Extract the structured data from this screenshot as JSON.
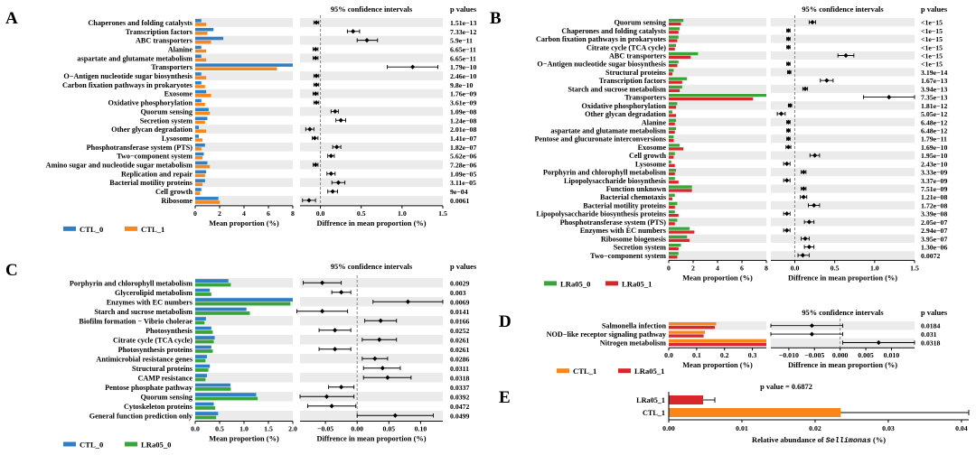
{
  "colors": {
    "blue": "#2e7fc6",
    "orange": "#f7861d",
    "green": "#3aa43a",
    "red": "#d7262c",
    "stripe": "#ebebeb",
    "axis": "#000",
    "dash": "#888"
  },
  "chart_data": [
    {
      "id": "A",
      "type": "bar",
      "letter": "A",
      "series_names": [
        "CTL_0",
        "CTL_1"
      ],
      "colors": [
        "blue",
        "orange"
      ],
      "ci_title": "95% confidence intervals",
      "pvalue_title": "p values",
      "xlabel": "Mean proportion (%)",
      "ci_xlabel": "Diffrence in mean proportion (%)",
      "xlim": [
        0,
        8
      ],
      "xticks": [
        0,
        2,
        4,
        6,
        8
      ],
      "cilim": [
        -0.25,
        1.5
      ],
      "citicks": [
        0.0,
        0.5,
        1.0,
        1.5
      ],
      "rows": [
        {
          "label": "Chaperones and folding catalysts",
          "a": 0.5,
          "b": 0.9,
          "diff": -0.05,
          "lo": -0.08,
          "hi": -0.02,
          "p": "1.51e−13"
        },
        {
          "label": "Transcription factors",
          "a": 1.5,
          "b": 1.0,
          "diff": 0.4,
          "lo": 0.33,
          "hi": 0.48,
          "p": "7.33e−12"
        },
        {
          "label": "ABC transporters",
          "a": 2.3,
          "b": 1.3,
          "diff": 0.57,
          "lo": 0.45,
          "hi": 0.7,
          "p": "5.9e−11"
        },
        {
          "label": "Alanine",
          "a": 0.5,
          "b": 0.9,
          "diff": -0.06,
          "lo": -0.09,
          "hi": -0.03,
          "p": "6.65e−11"
        },
        {
          "label": "aspartate and glutamate metabolism",
          "a": 0.5,
          "b": 0.9,
          "diff": -0.06,
          "lo": -0.09,
          "hi": -0.03,
          "p": "6.65e−11"
        },
        {
          "label": "Transporters",
          "a": 8.0,
          "b": 6.7,
          "diff": 1.13,
          "lo": 0.82,
          "hi": 1.44,
          "p": "1.79e−10"
        },
        {
          "label": "O−Antigen nucleotide sugar biosynthesis",
          "a": 0.5,
          "b": 0.9,
          "diff": -0.05,
          "lo": -0.08,
          "hi": -0.02,
          "p": "2.46e−10"
        },
        {
          "label": "Carbon fixation pathways in prokaryotes",
          "a": 0.5,
          "b": 0.8,
          "diff": -0.05,
          "lo": -0.08,
          "hi": -0.02,
          "p": "9.8e−10"
        },
        {
          "label": "Exosome",
          "a": 0.9,
          "b": 1.3,
          "diff": -0.06,
          "lo": -0.09,
          "hi": -0.03,
          "p": "1.76e−09"
        },
        {
          "label": "Oxidative phosphorylation",
          "a": 0.5,
          "b": 0.8,
          "diff": -0.05,
          "lo": -0.08,
          "hi": -0.02,
          "p": "3.61e−09"
        },
        {
          "label": "Quorum sensing",
          "a": 1.1,
          "b": 1.2,
          "diff": 0.18,
          "lo": 0.13,
          "hi": 0.22,
          "p": "1.09e−08"
        },
        {
          "label": "Secretion system",
          "a": 1.0,
          "b": 0.8,
          "diff": 0.25,
          "lo": 0.19,
          "hi": 0.31,
          "p": "1.24e−08"
        },
        {
          "label": "Other glycan degradation",
          "a": 0.3,
          "b": 0.9,
          "diff": -0.13,
          "lo": -0.18,
          "hi": -0.08,
          "p": "2.01e−08"
        },
        {
          "label": "Lysosome",
          "a": 0.3,
          "b": 0.6,
          "diff": -0.07,
          "lo": -0.1,
          "hi": -0.03,
          "p": "1.41e−07"
        },
        {
          "label": "Phosphotransferase system (PTS)",
          "a": 0.8,
          "b": 0.5,
          "diff": 0.2,
          "lo": 0.15,
          "hi": 0.25,
          "p": "1.82e−07"
        },
        {
          "label": "Two−component system",
          "a": 0.7,
          "b": 0.6,
          "diff": 0.13,
          "lo": 0.09,
          "hi": 0.17,
          "p": "5.62e−06"
        },
        {
          "label": "Amino sugar and nucleotide sugar metabolism",
          "a": 1.0,
          "b": 1.2,
          "diff": -0.06,
          "lo": -0.09,
          "hi": -0.03,
          "p": "7.28e−06"
        },
        {
          "label": "Replication and repair",
          "a": 0.9,
          "b": 0.8,
          "diff": 0.13,
          "lo": 0.08,
          "hi": 0.18,
          "p": "1.09e−05"
        },
        {
          "label": "Bacterial motility proteins",
          "a": 0.8,
          "b": 0.6,
          "diff": 0.22,
          "lo": 0.14,
          "hi": 0.3,
          "p": "3.11e−05"
        },
        {
          "label": "Cell growth",
          "a": 0.5,
          "b": 0.4,
          "diff": 0.15,
          "lo": 0.09,
          "hi": 0.21,
          "p": "9e−04"
        },
        {
          "label": "Ribosome",
          "a": 1.9,
          "b": 2.0,
          "diff": -0.14,
          "lo": -0.22,
          "hi": -0.06,
          "p": "0.0061"
        }
      ]
    },
    {
      "id": "B",
      "type": "bar",
      "letter": "B",
      "series_names": [
        "LRa05_0",
        "LRa05_1"
      ],
      "colors": [
        "green",
        "red"
      ],
      "ci_title": "95% confidence intervals",
      "pvalue_title": "p values",
      "xlabel": "Mean proportion (%)",
      "ci_xlabel": "Diffrence in mean proportion (%)",
      "xlim": [
        0,
        8
      ],
      "xticks": [
        0,
        2,
        4,
        6,
        8
      ],
      "cilim": [
        -0.3,
        1.5
      ],
      "citicks": [
        0.0,
        0.5,
        1.0,
        1.5
      ],
      "rows": [
        {
          "label": "Quorum sensing",
          "a": 1.2,
          "b": 1.0,
          "diff": 0.22,
          "lo": 0.18,
          "hi": 0.26,
          "p": "<1e−15"
        },
        {
          "label": "Chaperones and folding catalysts",
          "a": 0.9,
          "b": 0.8,
          "diff": -0.08,
          "lo": -0.1,
          "hi": -0.06,
          "p": "<1e−15"
        },
        {
          "label": "Carbon fixation pathways in prokaryotes",
          "a": 0.8,
          "b": 0.7,
          "diff": -0.08,
          "lo": -0.1,
          "hi": -0.06,
          "p": "<1e−15"
        },
        {
          "label": "Citrate cycle (TCA cycle)",
          "a": 0.6,
          "b": 0.5,
          "diff": -0.08,
          "lo": -0.1,
          "hi": -0.06,
          "p": "<1e−15"
        },
        {
          "label": "ABC transporters",
          "a": 2.4,
          "b": 1.8,
          "diff": 0.64,
          "lo": 0.54,
          "hi": 0.74,
          "p": "<1e−15"
        },
        {
          "label": "O−Antigen nucleotide sugar biosynthesis",
          "a": 0.8,
          "b": 0.7,
          "diff": -0.08,
          "lo": -0.1,
          "hi": -0.06,
          "p": "<1e−15"
        },
        {
          "label": "Structural proteins",
          "a": 0.4,
          "b": 0.3,
          "diff": -0.07,
          "lo": -0.09,
          "hi": -0.05,
          "p": "3.19e−14"
        },
        {
          "label": "Transcription factors",
          "a": 1.5,
          "b": 1.1,
          "diff": 0.4,
          "lo": 0.32,
          "hi": 0.48,
          "p": "1.67e−13"
        },
        {
          "label": "Starch and sucrose metabolism",
          "a": 1.1,
          "b": 0.9,
          "diff": 0.13,
          "lo": 0.1,
          "hi": 0.16,
          "p": "3.94e−13"
        },
        {
          "label": "Transporters",
          "a": 8.0,
          "b": 6.9,
          "diff": 1.18,
          "lo": 0.86,
          "hi": 1.5,
          "p": "7.35e−13"
        },
        {
          "label": "Oxidative phosphorylation",
          "a": 0.7,
          "b": 0.6,
          "diff": -0.06,
          "lo": -0.08,
          "hi": -0.04,
          "p": "1.81e−12"
        },
        {
          "label": "Other glycan degradation",
          "a": 0.3,
          "b": 0.6,
          "diff": -0.17,
          "lo": -0.22,
          "hi": -0.12,
          "p": "5.05e−12"
        },
        {
          "label": "Alanine",
          "a": 0.6,
          "b": 0.5,
          "diff": -0.08,
          "lo": -0.1,
          "hi": -0.06,
          "p": "6.48e−12"
        },
        {
          "label": "aspartate and glutamate metabolism",
          "a": 0.6,
          "b": 0.5,
          "diff": -0.08,
          "lo": -0.1,
          "hi": -0.06,
          "p": "6.48e−12"
        },
        {
          "label": "Pentose and glucuronate interconversions",
          "a": 0.4,
          "b": 0.4,
          "diff": -0.08,
          "lo": -0.1,
          "hi": -0.06,
          "p": "1.79e−11"
        },
        {
          "label": "Exosome",
          "a": 0.9,
          "b": 1.2,
          "diff": -0.08,
          "lo": -0.11,
          "hi": -0.05,
          "p": "1.69e−10"
        },
        {
          "label": "Cell growth",
          "a": 0.5,
          "b": 0.4,
          "diff": 0.25,
          "lo": 0.19,
          "hi": 0.31,
          "p": "1.95e−10"
        },
        {
          "label": "Lysosome",
          "a": 0.2,
          "b": 0.5,
          "diff": -0.1,
          "lo": -0.14,
          "hi": -0.06,
          "p": "2.43e−10"
        },
        {
          "label": "Porphyrin and chlorophyll metabolism",
          "a": 0.6,
          "b": 0.5,
          "diff": 0.11,
          "lo": 0.08,
          "hi": 0.14,
          "p": "3.33e−09"
        },
        {
          "label": "Lipopolysaccharide biosynthesis",
          "a": 0.5,
          "b": 0.8,
          "diff": -0.1,
          "lo": -0.14,
          "hi": -0.06,
          "p": "3.37e−09"
        },
        {
          "label": "Function unknown",
          "a": 1.9,
          "b": 1.9,
          "diff": 0.11,
          "lo": 0.08,
          "hi": 0.14,
          "p": "7.51e−09"
        },
        {
          "label": "Bacterial chemotaxis",
          "a": 0.5,
          "b": 0.3,
          "diff": 0.11,
          "lo": 0.07,
          "hi": 0.15,
          "p": "1.21e−08"
        },
        {
          "label": "Bacterial motility proteins",
          "a": 0.7,
          "b": 0.5,
          "diff": 0.24,
          "lo": 0.17,
          "hi": 0.31,
          "p": "1.72e−08"
        },
        {
          "label": "Lipopolysaccharide biosynthesis proteins",
          "a": 0.5,
          "b": 0.8,
          "diff": -0.1,
          "lo": -0.14,
          "hi": -0.06,
          "p": "3.39e−08"
        },
        {
          "label": "Phosphotransferase system (PTS)",
          "a": 0.7,
          "b": 0.5,
          "diff": 0.18,
          "lo": 0.12,
          "hi": 0.24,
          "p": "2.05e−07"
        },
        {
          "label": "Enzymes with EC numbers",
          "a": 1.7,
          "b": 2.1,
          "diff": -0.1,
          "lo": -0.14,
          "hi": -0.06,
          "p": "2.94e−07"
        },
        {
          "label": "Ribosome biogenesis",
          "a": 1.5,
          "b": 1.7,
          "diff": 0.13,
          "lo": 0.08,
          "hi": 0.18,
          "p": "3.95e−07"
        },
        {
          "label": "Secretion system",
          "a": 1.0,
          "b": 0.8,
          "diff": 0.18,
          "lo": 0.12,
          "hi": 0.24,
          "p": "1.30e−06"
        },
        {
          "label": "Two−component system",
          "a": 0.8,
          "b": 0.7,
          "diff": 0.1,
          "lo": 0.04,
          "hi": 0.18,
          "p": "0.0072"
        }
      ]
    },
    {
      "id": "C",
      "type": "bar",
      "letter": "C",
      "series_names": [
        "CTL_0",
        "LRa05_0"
      ],
      "colors": [
        "blue",
        "green"
      ],
      "ci_title": "95% confidence intervals",
      "pvalue_title": "p values",
      "xlabel": "Mean proportion (%)",
      "ci_xlabel": "Diffrence in mean proportion (%)",
      "xlim": [
        0,
        2.0
      ],
      "xticks": [
        0.0,
        0.5,
        1.0,
        1.5,
        2.0
      ],
      "xticklabels": [
        "0.0",
        "0.5",
        "1.0",
        "1.5",
        "2.0"
      ],
      "cilim": [
        -0.09,
        0.135
      ],
      "citicks": [
        -0.05,
        0.0,
        0.05,
        0.1
      ],
      "citicklabels": [
        "−0.05",
        "0.00",
        "0.05",
        "0.10"
      ],
      "rows": [
        {
          "label": "Porphyrin and chlorophyll metabolism",
          "a": 0.68,
          "b": 0.73,
          "diff": -0.055,
          "lo": -0.085,
          "hi": -0.025,
          "p": "0.0029"
        },
        {
          "label": "Glycerolipid metabolism",
          "a": 0.3,
          "b": 0.33,
          "diff": -0.025,
          "lo": -0.04,
          "hi": -0.01,
          "p": "0.003"
        },
        {
          "label": "Enzymes with EC numbers",
          "a": 2.0,
          "b": 1.95,
          "diff": 0.08,
          "lo": 0.025,
          "hi": 0.135,
          "p": "0.0069"
        },
        {
          "label": "Starch and sucrose metabolism",
          "a": 1.05,
          "b": 1.12,
          "diff": -0.055,
          "lo": -0.095,
          "hi": -0.015,
          "p": "0.0141"
        },
        {
          "label": "Biofilm formation − Vibrio cholerae",
          "a": 0.22,
          "b": 0.19,
          "diff": 0.037,
          "lo": 0.012,
          "hi": 0.062,
          "p": "0.0166"
        },
        {
          "label": "Photosynthesis",
          "a": 0.33,
          "b": 0.36,
          "diff": -0.035,
          "lo": -0.06,
          "hi": -0.01,
          "p": "0.0252"
        },
        {
          "label": "Citrate cycle (TCA cycle)",
          "a": 0.4,
          "b": 0.38,
          "diff": 0.035,
          "lo": 0.008,
          "hi": 0.062,
          "p": "0.0261"
        },
        {
          "label": "Photosynthesis proteins",
          "a": 0.33,
          "b": 0.36,
          "diff": -0.035,
          "lo": -0.06,
          "hi": -0.01,
          "p": "0.0261"
        },
        {
          "label": "Antimicrobial resistance genes",
          "a": 0.24,
          "b": 0.21,
          "diff": 0.028,
          "lo": 0.008,
          "hi": 0.048,
          "p": "0.0286"
        },
        {
          "label": "Structural proteins",
          "a": 0.3,
          "b": 0.27,
          "diff": 0.04,
          "lo": 0.01,
          "hi": 0.068,
          "p": "0.0311"
        },
        {
          "label": "CAMP resistance",
          "a": 0.24,
          "b": 0.21,
          "diff": 0.048,
          "lo": 0.01,
          "hi": 0.085,
          "p": "0.0318"
        },
        {
          "label": "Pentose phosphate pathway",
          "a": 0.72,
          "b": 0.73,
          "diff": -0.025,
          "lo": -0.045,
          "hi": -0.005,
          "p": "0.0337"
        },
        {
          "label": "Quorum sensing",
          "a": 1.25,
          "b": 1.28,
          "diff": -0.048,
          "lo": -0.09,
          "hi": -0.005,
          "p": "0.0392"
        },
        {
          "label": "Cytoskeleton proteins",
          "a": 0.38,
          "b": 0.41,
          "diff": -0.04,
          "lo": -0.078,
          "hi": -0.002,
          "p": "0.0472"
        },
        {
          "label": "General function prediction only",
          "a": 0.47,
          "b": 0.43,
          "diff": 0.06,
          "lo": 0.0,
          "hi": 0.12,
          "p": "0.0499"
        }
      ]
    },
    {
      "id": "D",
      "type": "bar",
      "letter": "D",
      "series_names": [
        "CTL_1",
        "LRa05_1"
      ],
      "colors": [
        "orange",
        "red"
      ],
      "ci_title": "95% confidence intervals",
      "pvalue_title": "p values",
      "xlabel": "Mean proportion (%)",
      "ci_xlabel": "Diffrence in mean proportion (%)",
      "xlim": [
        0,
        0.35
      ],
      "xticks": [
        0.0,
        0.1,
        0.2,
        0.3
      ],
      "xticklabels": [
        "0.0",
        "0.1",
        "0.2",
        "0.3"
      ],
      "cilim": [
        -0.0135,
        0.0145
      ],
      "citicks": [
        -0.01,
        -0.005,
        0.0,
        0.005,
        0.01
      ],
      "citicklabels": [
        "−0.010",
        "−0.005",
        "0.000",
        "0.005",
        "0.010"
      ],
      "rows": [
        {
          "label": "Salmonella infection",
          "a": 0.17,
          "b": 0.165,
          "diff": -0.0055,
          "lo": -0.0135,
          "hi": 0.0005,
          "p": "0.0184"
        },
        {
          "label": "NOD−like receptor signaling pathway",
          "a": 0.13,
          "b": 0.125,
          "diff": -0.0055,
          "lo": -0.0135,
          "hi": 0.0005,
          "p": "0.031"
        },
        {
          "label": "Nitrogen metabolism",
          "a": 0.35,
          "b": 0.35,
          "diff": 0.0075,
          "lo": 0.0005,
          "hi": 0.0145,
          "p": "0.0318"
        }
      ]
    },
    {
      "id": "E",
      "type": "bar",
      "letter": "E",
      "title": "p value = 0.6872",
      "categories": [
        "LRa05_1",
        "CTL_1"
      ],
      "values": [
        0.0047,
        0.0235
      ],
      "err": [
        0.0016,
        0.0175
      ],
      "colors": [
        "red",
        "orange"
      ],
      "xlabel_prefix": "Relative abundance of ",
      "xlabel_italic": "Sellimonas",
      "xlabel_suffix": " (%)",
      "xlim": [
        0,
        0.041
      ],
      "xticks": [
        0.0,
        0.01,
        0.02,
        0.03,
        0.04
      ],
      "xticklabels": [
        "0.00",
        "0.01",
        "0.02",
        "0.03",
        "0.04"
      ]
    }
  ]
}
